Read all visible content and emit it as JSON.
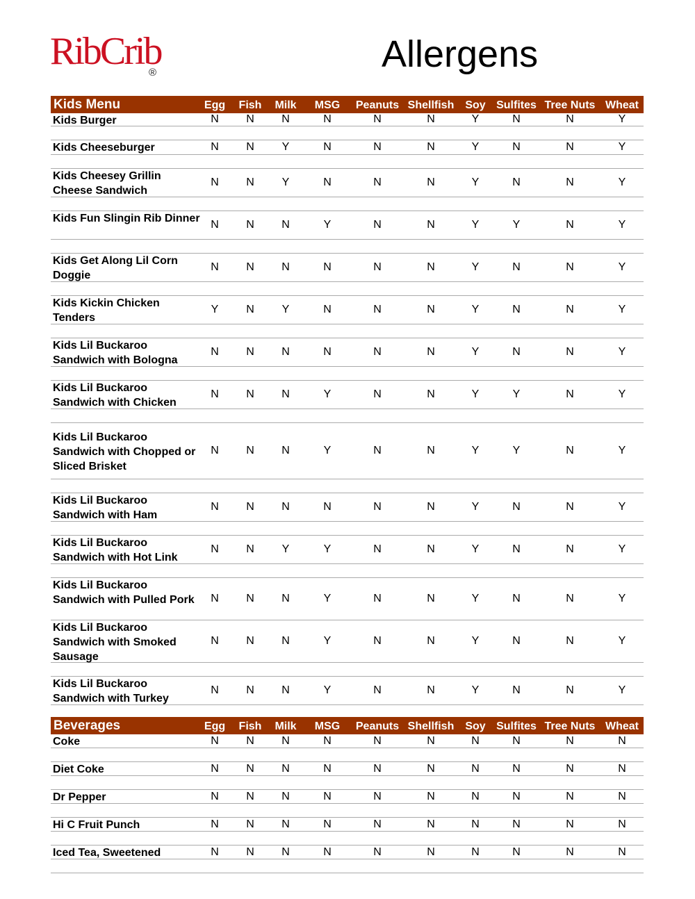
{
  "logo": {
    "text": "RibCrib",
    "registered": "®",
    "color": "#cc1122"
  },
  "title": "Allergens",
  "header_color": "#993300",
  "columns": [
    "Egg",
    "Fish",
    "Milk",
    "MSG",
    "Peanuts",
    "Shellfish",
    "Soy",
    "Sulfites",
    "Tree Nuts",
    "Wheat"
  ],
  "sections": [
    {
      "name": "Kids Menu",
      "items": [
        {
          "name": "Kids Burger",
          "values": [
            "N",
            "N",
            "N",
            "N",
            "N",
            "N",
            "Y",
            "N",
            "N",
            "Y"
          ]
        },
        {
          "name": "Kids Cheeseburger",
          "values": [
            "N",
            "N",
            "Y",
            "N",
            "N",
            "N",
            "Y",
            "N",
            "N",
            "Y"
          ]
        },
        {
          "name": "Kids Cheesey Grillin Cheese Sandwich",
          "values": [
            "N",
            "N",
            "Y",
            "N",
            "N",
            "N",
            "Y",
            "N",
            "N",
            "Y"
          ]
        },
        {
          "name": "Kids Fun Slingin Rib Dinner",
          "values": [
            "N",
            "N",
            "N",
            "Y",
            "N",
            "N",
            "Y",
            "Y",
            "N",
            "Y"
          ]
        },
        {
          "name": "Kids Get Along Lil Corn Doggie",
          "values": [
            "N",
            "N",
            "N",
            "N",
            "N",
            "N",
            "Y",
            "N",
            "N",
            "Y"
          ]
        },
        {
          "name": "Kids Kickin Chicken Tenders",
          "values": [
            "Y",
            "N",
            "Y",
            "N",
            "N",
            "N",
            "Y",
            "N",
            "N",
            "Y"
          ]
        },
        {
          "name": "Kids Lil Buckaroo Sandwich with Bologna",
          "values": [
            "N",
            "N",
            "N",
            "N",
            "N",
            "N",
            "Y",
            "N",
            "N",
            "Y"
          ]
        },
        {
          "name": "Kids Lil Buckaroo Sandwich with Chicken",
          "values": [
            "N",
            "N",
            "N",
            "Y",
            "N",
            "N",
            "Y",
            "Y",
            "N",
            "Y"
          ]
        },
        {
          "name": "Kids Lil Buckaroo Sandwich with Chopped or Sliced Brisket",
          "values": [
            "N",
            "N",
            "N",
            "Y",
            "N",
            "N",
            "Y",
            "Y",
            "N",
            "Y"
          ]
        },
        {
          "name": "Kids Lil Buckaroo Sandwich with Ham",
          "values": [
            "N",
            "N",
            "N",
            "N",
            "N",
            "N",
            "Y",
            "N",
            "N",
            "Y"
          ]
        },
        {
          "name": "Kids Lil Buckaroo Sandwich with Hot Link",
          "values": [
            "N",
            "N",
            "Y",
            "Y",
            "N",
            "N",
            "Y",
            "N",
            "N",
            "Y"
          ]
        },
        {
          "name": "Kids Lil Buckaroo Sandwich with Pulled Pork",
          "values": [
            "N",
            "N",
            "N",
            "Y",
            "N",
            "N",
            "Y",
            "N",
            "N",
            "Y"
          ]
        },
        {
          "name": "Kids Lil Buckaroo Sandwich with Smoked Sausage",
          "values": [
            "N",
            "N",
            "N",
            "Y",
            "N",
            "N",
            "Y",
            "N",
            "N",
            "Y"
          ]
        },
        {
          "name": "Kids Lil Buckaroo Sandwich with Turkey",
          "values": [
            "N",
            "N",
            "N",
            "Y",
            "N",
            "N",
            "Y",
            "N",
            "N",
            "Y"
          ]
        }
      ]
    },
    {
      "name": "Beverages",
      "items": [
        {
          "name": "Coke",
          "values": [
            "N",
            "N",
            "N",
            "N",
            "N",
            "N",
            "N",
            "N",
            "N",
            "N"
          ]
        },
        {
          "name": "Diet Coke",
          "values": [
            "N",
            "N",
            "N",
            "N",
            "N",
            "N",
            "N",
            "N",
            "N",
            "N"
          ]
        },
        {
          "name": "Dr Pepper",
          "values": [
            "N",
            "N",
            "N",
            "N",
            "N",
            "N",
            "N",
            "N",
            "N",
            "N"
          ]
        },
        {
          "name": "Hi C Fruit Punch",
          "values": [
            "N",
            "N",
            "N",
            "N",
            "N",
            "N",
            "N",
            "N",
            "N",
            "N"
          ]
        },
        {
          "name": "Iced Tea, Sweetened",
          "values": [
            "N",
            "N",
            "N",
            "N",
            "N",
            "N",
            "N",
            "N",
            "N",
            "N"
          ]
        }
      ]
    }
  ]
}
